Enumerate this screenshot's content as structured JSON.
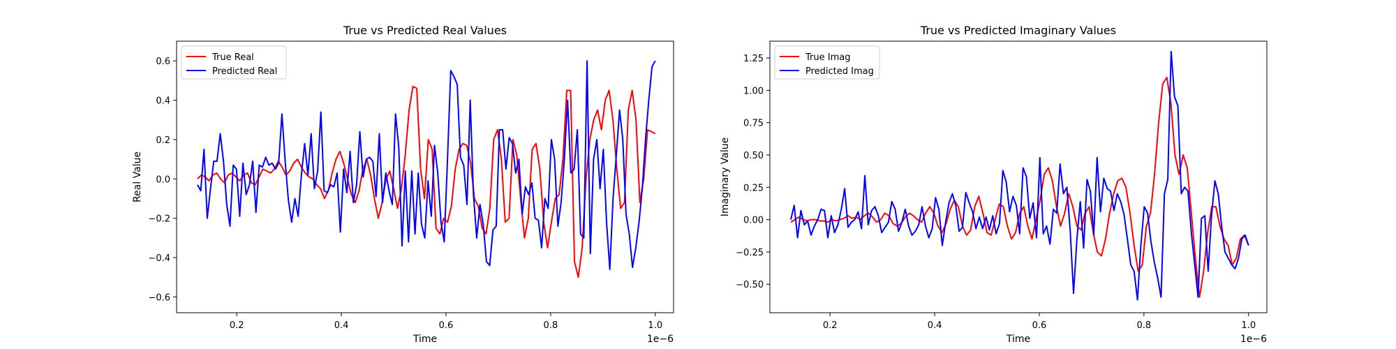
{
  "chart_data": [
    {
      "type": "line",
      "title": "True vs Predicted Real Values",
      "xlabel": "Time",
      "ylabel": "Real Value",
      "x_offset_label": "1e−6",
      "xlim": [
        0.085,
        1.035
      ],
      "ylim": [
        -0.68,
        0.7
      ],
      "x_ticks": [
        0.2,
        0.4,
        0.6,
        0.8,
        1.0
      ],
      "x_tick_labels": [
        "0.2",
        "0.4",
        "0.6",
        "0.8",
        "1.0"
      ],
      "y_ticks": [
        -0.6,
        -0.4,
        -0.2,
        0.0,
        0.2,
        0.4,
        0.6
      ],
      "y_tick_labels": [
        "−0.6",
        "−0.4",
        "−0.2",
        "0.0",
        "0.2",
        "0.4",
        "0.6"
      ],
      "grid": false,
      "legend_position": "upper-left",
      "x_start": 0.125,
      "x_end": 1.0,
      "series": [
        {
          "name": "True Real",
          "color": "#ff0000",
          "values": [
            0.0,
            0.02,
            0.01,
            -0.01,
            0.02,
            0.03,
            0.0,
            -0.02,
            0.02,
            0.03,
            0.01,
            -0.01,
            0.02,
            0.03,
            -0.02,
            -0.03,
            0.01,
            0.05,
            0.04,
            0.03,
            0.05,
            0.09,
            0.06,
            0.02,
            0.04,
            0.08,
            0.1,
            0.06,
            0.03,
            0.01,
            0.0,
            -0.03,
            -0.05,
            -0.1,
            -0.06,
            0.03,
            0.1,
            0.14,
            0.08,
            0.0,
            -0.08,
            -0.12,
            -0.06,
            0.05,
            0.1,
            0.02,
            -0.1,
            -0.2,
            -0.12,
            0.0,
            0.04,
            -0.05,
            -0.15,
            -0.05,
            0.12,
            0.35,
            0.47,
            0.46,
            0.05,
            -0.1,
            0.2,
            0.15,
            -0.25,
            -0.28,
            -0.2,
            -0.22,
            -0.14,
            0.05,
            0.15,
            0.18,
            0.17,
            0.08,
            -0.1,
            -0.14,
            -0.25,
            -0.28,
            -0.15,
            0.2,
            0.25,
            0.1,
            -0.22,
            -0.2,
            0.2,
            0.12,
            -0.1,
            -0.3,
            -0.2,
            0.15,
            0.18,
            0.05,
            -0.22,
            -0.35,
            -0.22,
            -0.1,
            -0.08,
            0.1,
            0.45,
            0.45,
            -0.42,
            -0.5,
            -0.35,
            0.0,
            0.2,
            0.3,
            0.35,
            0.25,
            0.4,
            0.45,
            0.3,
            0.05,
            -0.15,
            -0.12,
            0.35,
            0.45,
            0.3,
            -0.12,
            0.0,
            0.25,
            0.24,
            0.23
          ]
        },
        {
          "name": "Predicted Real",
          "color": "#0000ff",
          "values": [
            -0.03,
            -0.06,
            0.15,
            -0.2,
            -0.05,
            0.09,
            0.09,
            0.23,
            0.09,
            -0.13,
            -0.24,
            0.07,
            0.05,
            -0.19,
            0.08,
            -0.08,
            -0.03,
            0.09,
            -0.17,
            0.07,
            0.06,
            0.11,
            0.07,
            0.08,
            0.05,
            0.08,
            0.33,
            0.09,
            -0.11,
            -0.22,
            -0.1,
            -0.19,
            0.02,
            0.18,
            0.02,
            0.23,
            -0.05,
            0.04,
            0.34,
            -0.06,
            -0.07,
            -0.03,
            -0.04,
            0.03,
            -0.27,
            0.05,
            -0.07,
            0.14,
            -0.12,
            -0.03,
            0.24,
            0.01,
            0.1,
            0.11,
            0.09,
            -0.09,
            0.23,
            -0.12,
            0.03,
            -0.06,
            -0.13,
            0.33,
            0.16,
            -0.34,
            0.04,
            -0.32,
            0.04,
            -0.28,
            0.03,
            -0.23,
            -0.3,
            -0.01,
            -0.19,
            0.17,
            0.03,
            -0.22,
            -0.32,
            0.1,
            0.55,
            0.52,
            0.48,
            0.11,
            0.07,
            -0.13,
            0.4,
            -0.08,
            -0.3,
            -0.13,
            -0.23,
            -0.42,
            -0.44,
            -0.26,
            -0.24,
            0.25,
            0.25,
            0.05,
            0.21,
            0.18,
            0.03,
            0.1,
            -0.18,
            -0.04,
            -0.08,
            -0.02,
            -0.2,
            -0.21,
            -0.35,
            -0.1,
            -0.15,
            0.2,
            0.1,
            -0.24,
            -0.12,
            0.1,
            0.4,
            0.03,
            0.05,
            0.25,
            -0.28,
            -0.3,
            0.6,
            -0.38,
            0.1,
            0.2,
            -0.05,
            0.15,
            -0.22,
            -0.46,
            -0.1,
            0.12,
            0.35,
            0.2,
            -0.18,
            -0.28,
            -0.45,
            -0.35,
            -0.22,
            -0.05,
            0.2,
            0.4,
            0.57,
            0.6
          ]
        }
      ]
    },
    {
      "type": "line",
      "title": "True vs Predicted Imaginary Values",
      "xlabel": "Time",
      "ylabel": "Imaginary Value",
      "x_offset_label": "1e−6",
      "xlim": [
        0.085,
        1.035
      ],
      "ylim": [
        -0.72,
        1.38
      ],
      "x_ticks": [
        0.2,
        0.4,
        0.6,
        0.8,
        1.0
      ],
      "x_tick_labels": [
        "0.2",
        "0.4",
        "0.6",
        "0.8",
        "1.0"
      ],
      "y_ticks": [
        -0.5,
        -0.25,
        0.0,
        0.25,
        0.5,
        0.75,
        1.0,
        1.25
      ],
      "y_tick_labels": [
        "−0.50",
        "−0.25",
        "0.00",
        "0.25",
        "0.50",
        "0.75",
        "1.00",
        "1.25"
      ],
      "grid": false,
      "legend_position": "upper-left",
      "x_start": 0.125,
      "x_end": 1.0,
      "series": [
        {
          "name": "True Imag",
          "color": "#ff0000",
          "values": [
            -0.02,
            0.0,
            0.02,
            0.0,
            -0.01,
            0.0,
            0.0,
            -0.01,
            -0.01,
            -0.02,
            0.0,
            -0.01,
            0.0,
            0.01,
            0.03,
            0.01,
            0.02,
            0.0,
            0.03,
            0.05,
            0.02,
            -0.02,
            0.0,
            0.05,
            0.03,
            -0.03,
            -0.05,
            -0.03,
            0.02,
            0.05,
            0.03,
            0.0,
            -0.02,
            0.05,
            0.1,
            0.05,
            -0.05,
            -0.1,
            -0.03,
            0.08,
            0.15,
            0.1,
            -0.05,
            -0.12,
            -0.08,
            0.1,
            0.18,
            0.05,
            -0.1,
            -0.12,
            0.0,
            0.12,
            0.1,
            -0.05,
            -0.15,
            -0.1,
            0.05,
            0.1,
            -0.05,
            -0.15,
            0.0,
            0.15,
            0.35,
            0.4,
            0.3,
            0.1,
            -0.05,
            0.05,
            0.2,
            0.1,
            -0.05,
            -0.08,
            0.05,
            0.1,
            -0.1,
            -0.25,
            -0.28,
            -0.15,
            0.05,
            0.2,
            0.3,
            0.32,
            0.25,
            0.05,
            -0.2,
            -0.4,
            -0.35,
            -0.05,
            0.05,
            0.35,
            0.75,
            1.05,
            1.1,
            0.9,
            0.5,
            0.35,
            0.5,
            0.4,
            0.05,
            -0.3,
            -0.6,
            -0.4,
            -0.1,
            0.1,
            0.1,
            -0.05,
            -0.15,
            -0.2,
            -0.35,
            -0.3,
            -0.15,
            -0.12,
            -0.2
          ]
        },
        {
          "name": "Predicted Imag",
          "color": "#0000ff",
          "values": [
            0.0,
            0.11,
            -0.14,
            0.07,
            -0.04,
            -0.01,
            -0.12,
            -0.05,
            0.0,
            0.08,
            0.07,
            -0.14,
            0.03,
            -0.1,
            -0.04,
            0.08,
            0.24,
            -0.06,
            -0.02,
            0.0,
            0.06,
            -0.07,
            0.34,
            -0.04,
            0.07,
            0.1,
            0.03,
            -0.1,
            -0.06,
            -0.02,
            0.14,
            0.08,
            -0.09,
            -0.02,
            0.08,
            -0.05,
            -0.12,
            -0.09,
            -0.04,
            0.1,
            -0.05,
            -0.14,
            -0.07,
            0.17,
            0.08,
            -0.2,
            -0.02,
            0.13,
            0.2,
            0.11,
            -0.09,
            -0.06,
            0.21,
            0.13,
            0.06,
            -0.07,
            0.02,
            -0.07,
            0.02,
            -0.08,
            0.03,
            -0.11,
            -0.03,
            0.38,
            0.29,
            0.06,
            0.18,
            0.11,
            -0.11,
            0.4,
            0.33,
            0.01,
            0.13,
            -0.14,
            0.48,
            -0.11,
            -0.05,
            -0.19,
            0.08,
            0.05,
            0.43,
            0.2,
            0.25,
            -0.08,
            -0.57,
            -0.15,
            0.14,
            -0.22,
            0.31,
            0.22,
            -0.12,
            0.48,
            0.06,
            0.32,
            0.24,
            0.22,
            0.07,
            0.2,
            0.14,
            0.04,
            -0.15,
            -0.35,
            -0.4,
            -0.62,
            -0.2,
            0.1,
            0.05,
            -0.17,
            -0.33,
            -0.45,
            -0.6,
            0.2,
            0.31,
            1.3,
            0.95,
            0.88,
            0.2,
            0.25,
            0.22,
            -0.1,
            -0.35,
            -0.6,
            0.01,
            0.03,
            -0.4,
            0.03,
            0.3,
            0.2,
            -0.05,
            -0.25,
            -0.3,
            -0.35,
            -0.38,
            -0.3,
            -0.15,
            -0.12,
            -0.2
          ]
        }
      ]
    }
  ]
}
